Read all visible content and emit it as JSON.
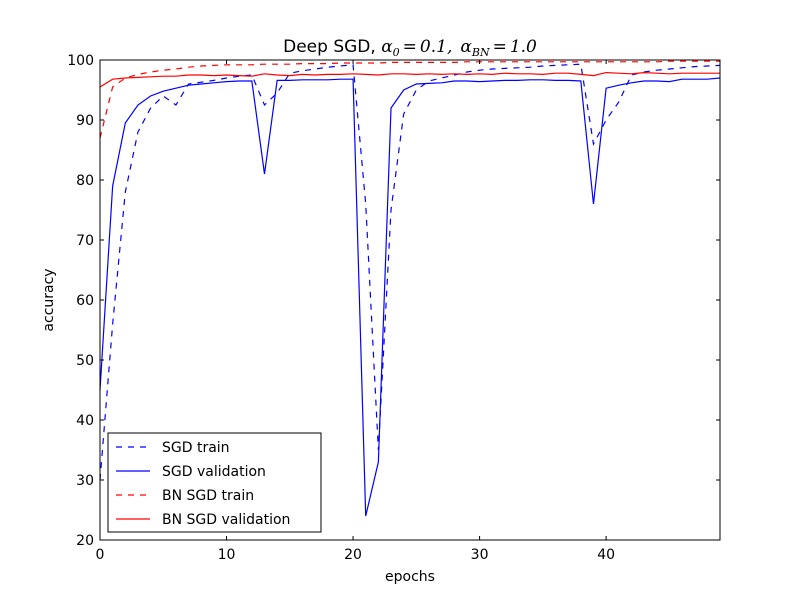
{
  "chart_data": {
    "type": "line",
    "title": "Deep SGD, α₀ = 0.1,  α_BN = 1.0",
    "title_parts": {
      "prefix": "Deep SGD, ",
      "alpha": "α",
      "sub0": "0",
      "eq": "=",
      "v1": "0.1,",
      "sub_bn": "BN",
      "v2": "1.0"
    },
    "xlabel": "epochs",
    "ylabel": "accuracy",
    "xlim": [
      0,
      49
    ],
    "ylim": [
      20,
      100
    ],
    "x_ticks": [
      "0",
      "10",
      "20",
      "30",
      "40"
    ],
    "y_ticks": [
      "20",
      "30",
      "40",
      "50",
      "60",
      "70",
      "80",
      "90",
      "100"
    ],
    "grid": false,
    "legend_position": "lower-left",
    "x": [
      0,
      1,
      2,
      3,
      4,
      5,
      6,
      7,
      8,
      9,
      10,
      11,
      12,
      13,
      14,
      15,
      16,
      17,
      18,
      19,
      20,
      21,
      22,
      23,
      24,
      25,
      26,
      27,
      28,
      29,
      30,
      31,
      32,
      33,
      34,
      35,
      36,
      37,
      38,
      39,
      40,
      41,
      42,
      43,
      44,
      45,
      46,
      47,
      48,
      49
    ],
    "series": [
      {
        "name": "SGD train",
        "color": "#0000ff",
        "dash": "dashed",
        "values": [
          30.0,
          56.0,
          78.0,
          88.0,
          92.0,
          94.0,
          92.5,
          96.0,
          96.3,
          96.6,
          97.0,
          97.3,
          97.5,
          92.5,
          94.5,
          97.8,
          98.2,
          98.5,
          98.8,
          99.0,
          99.2,
          76.0,
          35.0,
          75.0,
          91.0,
          95.0,
          96.5,
          97.0,
          97.5,
          98.0,
          98.3,
          98.5,
          98.6,
          98.7,
          98.8,
          99.0,
          99.1,
          99.2,
          99.3,
          86.0,
          90.0,
          93.0,
          97.5,
          98.0,
          98.3,
          98.5,
          98.7,
          98.9,
          99.0,
          99.1
        ]
      },
      {
        "name": "SGD validation",
        "color": "#0000ff",
        "dash": "solid",
        "values": [
          45.0,
          79.0,
          89.5,
          92.5,
          94.0,
          94.8,
          95.3,
          95.8,
          96.0,
          96.2,
          96.4,
          96.5,
          96.5,
          81.0,
          96.6,
          96.6,
          96.7,
          96.7,
          96.7,
          96.8,
          96.8,
          24.0,
          33.0,
          92.0,
          95.0,
          96.0,
          96.1,
          96.2,
          96.5,
          96.5,
          96.4,
          96.5,
          96.6,
          96.6,
          96.7,
          96.7,
          96.6,
          96.6,
          96.5,
          76.0,
          95.3,
          95.8,
          96.2,
          96.5,
          96.5,
          96.4,
          96.8,
          96.8,
          96.8,
          97.0
        ]
      },
      {
        "name": "BN SGD train",
        "color": "#ff0000",
        "dash": "dashed",
        "values": [
          87.0,
          95.5,
          97.0,
          97.6,
          98.0,
          98.3,
          98.5,
          98.8,
          99.0,
          99.1,
          99.2,
          99.2,
          99.2,
          99.3,
          99.3,
          99.3,
          99.4,
          99.4,
          99.4,
          99.5,
          99.5,
          99.5,
          99.5,
          99.6,
          99.6,
          99.6,
          99.6,
          99.6,
          99.6,
          99.7,
          99.7,
          99.7,
          99.7,
          99.7,
          99.7,
          99.7,
          99.7,
          99.7,
          99.7,
          99.7,
          99.7,
          99.7,
          99.7,
          99.7,
          99.7,
          99.8,
          99.8,
          99.8,
          99.8,
          99.8
        ]
      },
      {
        "name": "BN SGD validation",
        "color": "#ff0000",
        "dash": "solid",
        "values": [
          95.5,
          96.8,
          97.0,
          97.1,
          97.2,
          97.3,
          97.3,
          97.5,
          97.5,
          97.4,
          97.5,
          97.4,
          97.3,
          97.7,
          97.5,
          97.4,
          97.6,
          97.5,
          97.6,
          97.6,
          97.7,
          97.6,
          97.5,
          97.7,
          97.7,
          97.6,
          97.7,
          97.6,
          97.7,
          97.6,
          97.7,
          97.6,
          97.8,
          97.7,
          97.7,
          97.6,
          97.8,
          97.8,
          97.6,
          97.4,
          97.9,
          97.8,
          97.7,
          97.9,
          97.8,
          97.7,
          97.8,
          97.8,
          97.8,
          97.8
        ]
      }
    ]
  }
}
